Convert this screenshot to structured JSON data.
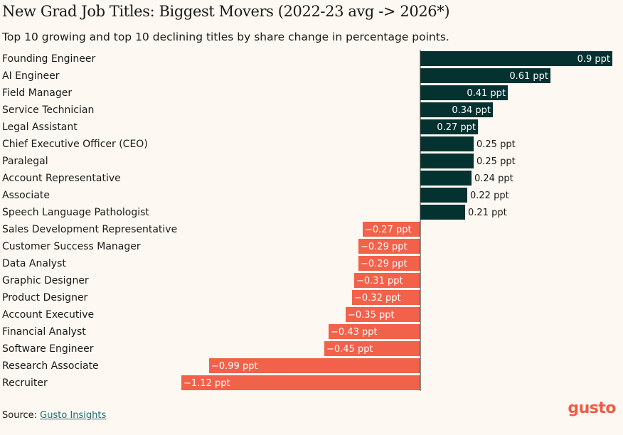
{
  "header": {
    "title": "New Grad Job Titles: Biggest Movers (2022-23 avg -> 2026*)",
    "subtitle": "Top 10 growing and top 10 declining titles by share change in percentage points."
  },
  "footer": {
    "source_prefix": "Source:",
    "source_link": "Gusto Insights",
    "logo": "gusto"
  },
  "colors": {
    "positive": "#033230",
    "negative": "#f2614a",
    "logo": "#f05c43"
  },
  "chart_data": {
    "type": "bar",
    "orientation": "horizontal",
    "unit_suffix": " ppt",
    "categories": [
      "Founding Engineer",
      "AI Engineer",
      "Field Manager",
      "Service Technician",
      "Legal Assistant",
      "Chief Executive Officer (CEO)",
      "Paralegal",
      "Account Representative",
      "Associate",
      "Speech Language Pathologist",
      "Sales Development Representative",
      "Customer Success Manager",
      "Data Analyst",
      "Graphic Designer",
      "Product Designer",
      "Account Executive",
      "Financial Analyst",
      "Software Engineer",
      "Research Associate",
      "Recruiter"
    ],
    "values": [
      0.9,
      0.61,
      0.41,
      0.34,
      0.27,
      0.25,
      0.25,
      0.24,
      0.22,
      0.21,
      -0.27,
      -0.29,
      -0.29,
      -0.31,
      -0.32,
      -0.35,
      -0.43,
      -0.45,
      -0.99,
      -1.12
    ],
    "labels": [
      "0.9 ppt",
      "0.61 ppt",
      "0.41 ppt",
      "0.34 ppt",
      "0.27 ppt",
      "0.25 ppt",
      "0.25 ppt",
      "0.24 ppt",
      "0.22 ppt",
      "0.21 ppt",
      "−0.27 ppt",
      "−0.29 ppt",
      "−0.29 ppt",
      "−0.31 ppt",
      "−0.32 ppt",
      "−0.35 ppt",
      "−0.43 ppt",
      "−0.45 ppt",
      "−0.99 ppt",
      "−1.12 ppt"
    ],
    "xlim": [
      -1.12,
      0.9
    ],
    "grid": false
  }
}
